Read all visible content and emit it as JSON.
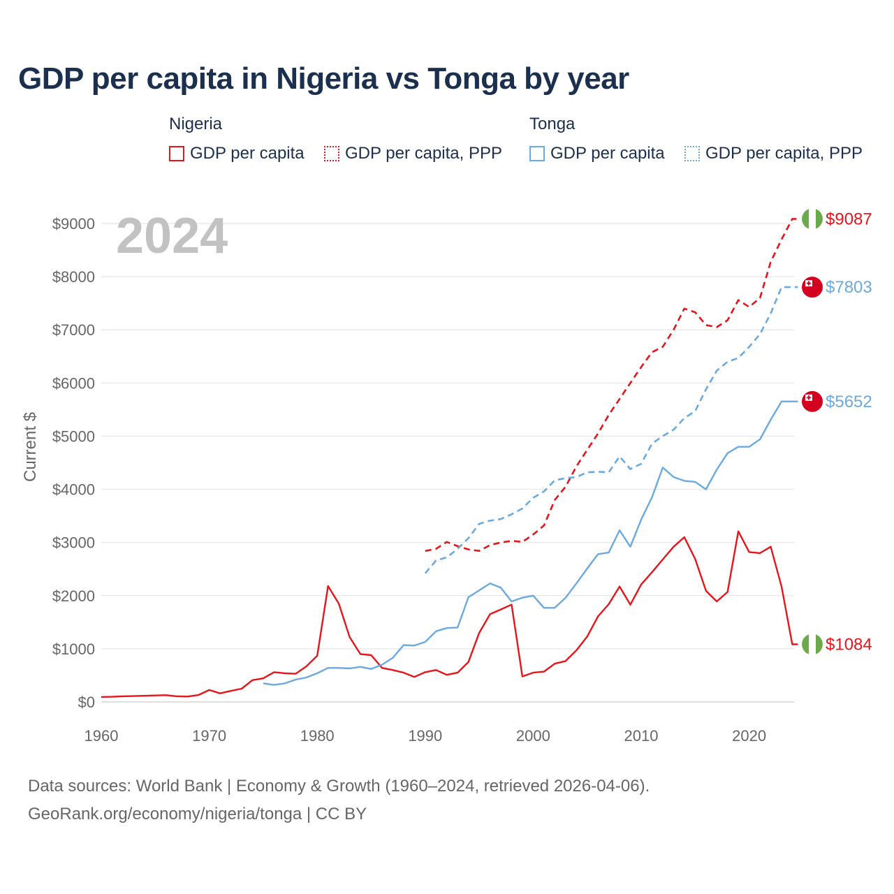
{
  "title": "GDP per capita in Nigeria vs Tonga by year",
  "legend": {
    "groups": [
      {
        "name": "Nigeria",
        "items": [
          "GDP per capita",
          "GDP per capita, PPP"
        ]
      },
      {
        "name": "Tonga",
        "items": [
          "GDP per capita",
          "GDP per capita, PPP"
        ]
      }
    ]
  },
  "year_label": "2024",
  "footer": {
    "line1": "Data sources: World Bank | Economy & Growth (1960–2024, retrieved 2026-04-06).",
    "line2": "GeoRank.org/economy/nigeria/tonga | CC BY"
  },
  "colors": {
    "nigeria": "#e8141b",
    "tonga": "#6aa9e2"
  },
  "chart_data": {
    "type": "line",
    "title": "GDP per capita in Nigeria vs Tonga by year",
    "xlabel": "",
    "ylabel": "Current $",
    "xlim": [
      1960,
      2025
    ],
    "ylim": [
      0,
      9000
    ],
    "x_ticks": [
      1960,
      1970,
      1980,
      1990,
      2000,
      2010,
      2020
    ],
    "y_ticks": [
      0,
      1000,
      2000,
      3000,
      4000,
      5000,
      6000,
      7000,
      8000,
      9000
    ],
    "y_tick_labels": [
      "$0",
      "$1000",
      "$2000",
      "$3000",
      "$4000",
      "$5000",
      "$6000",
      "$7000",
      "$8000",
      "$9000"
    ],
    "grid": true,
    "legend_position": "top",
    "series": [
      {
        "name": "Nigeria GDP per capita",
        "country": "nigeria",
        "style": "solid",
        "end_label": "$1084",
        "x": [
          1960,
          1961,
          1962,
          1963,
          1964,
          1965,
          1966,
          1967,
          1968,
          1969,
          1970,
          1971,
          1972,
          1973,
          1974,
          1975,
          1976,
          1977,
          1978,
          1979,
          1980,
          1981,
          1982,
          1983,
          1984,
          1985,
          1986,
          1987,
          1988,
          1989,
          1990,
          1991,
          1992,
          1993,
          1994,
          1995,
          1996,
          1997,
          1998,
          1999,
          2000,
          2001,
          2002,
          2003,
          2004,
          2005,
          2006,
          2007,
          2008,
          2009,
          2010,
          2011,
          2012,
          2013,
          2014,
          2015,
          2016,
          2017,
          2018,
          2019,
          2020,
          2021,
          2022,
          2023,
          2024
        ],
        "values": [
          93,
          97,
          106,
          110,
          116,
          122,
          127,
          106,
          101,
          130,
          225,
          162,
          208,
          250,
          410,
          444,
          560,
          540,
          530,
          670,
          870,
          2180,
          1850,
          1220,
          900,
          880,
          640,
          600,
          550,
          470,
          560,
          600,
          510,
          550,
          750,
          1300,
          1650,
          1740,
          1830,
          480,
          550,
          570,
          720,
          770,
          970,
          1230,
          1610,
          1840,
          2170,
          1830,
          2210,
          2440,
          2680,
          2920,
          3100,
          2690,
          2090,
          1890,
          2070,
          3210,
          2820,
          2800,
          2920,
          2170,
          1084
        ]
      },
      {
        "name": "Nigeria GDP per capita, PPP",
        "country": "nigeria",
        "style": "dashed",
        "end_label": "$9087",
        "x": [
          1990,
          1991,
          1992,
          1993,
          1994,
          1995,
          1996,
          1997,
          1998,
          1999,
          2000,
          2001,
          2002,
          2003,
          2004,
          2005,
          2006,
          2007,
          2008,
          2009,
          2010,
          2011,
          2012,
          2013,
          2014,
          2015,
          2016,
          2017,
          2018,
          2019,
          2020,
          2021,
          2022,
          2023,
          2024
        ],
        "values": [
          2840,
          2880,
          3010,
          2930,
          2870,
          2840,
          2950,
          3000,
          3030,
          3010,
          3150,
          3320,
          3800,
          4050,
          4430,
          4740,
          5050,
          5400,
          5700,
          6000,
          6300,
          6580,
          6680,
          7000,
          7400,
          7330,
          7090,
          7050,
          7180,
          7560,
          7430,
          7600,
          8280,
          8700,
          9087
        ]
      },
      {
        "name": "Tonga GDP per capita",
        "country": "tonga",
        "style": "solid",
        "end_label": "$5652",
        "x": [
          1975,
          1976,
          1977,
          1978,
          1979,
          1980,
          1981,
          1982,
          1983,
          1984,
          1985,
          1986,
          1987,
          1988,
          1989,
          1990,
          1991,
          1992,
          1993,
          1994,
          1995,
          1996,
          1997,
          1998,
          1999,
          2000,
          2001,
          2002,
          2003,
          2004,
          2005,
          2006,
          2007,
          2008,
          2009,
          2010,
          2011,
          2012,
          2013,
          2014,
          2015,
          2016,
          2017,
          2018,
          2019,
          2020,
          2021,
          2022,
          2023,
          2024
        ],
        "values": [
          350,
          320,
          350,
          420,
          460,
          540,
          640,
          640,
          630,
          660,
          620,
          700,
          830,
          1070,
          1060,
          1130,
          1330,
          1390,
          1400,
          1970,
          2100,
          2230,
          2150,
          1890,
          1960,
          2000,
          1770,
          1770,
          1960,
          2230,
          2510,
          2780,
          2810,
          3230,
          2920,
          3430,
          3850,
          4410,
          4230,
          4160,
          4140,
          4000,
          4370,
          4680,
          4800,
          4800,
          4940,
          5310,
          5652,
          5652
        ]
      },
      {
        "name": "Tonga GDP per capita, PPP",
        "country": "tonga",
        "style": "dashed",
        "end_label": "$7803",
        "x": [
          1990,
          1991,
          1992,
          1993,
          1994,
          1995,
          1996,
          1997,
          1998,
          1999,
          2000,
          2001,
          2002,
          2003,
          2004,
          2005,
          2006,
          2007,
          2008,
          2009,
          2010,
          2011,
          2012,
          2013,
          2014,
          2015,
          2016,
          2017,
          2018,
          2019,
          2020,
          2021,
          2022,
          2023,
          2024
        ],
        "values": [
          2420,
          2660,
          2720,
          2880,
          3080,
          3350,
          3410,
          3440,
          3530,
          3640,
          3840,
          3960,
          4170,
          4210,
          4230,
          4320,
          4330,
          4320,
          4620,
          4380,
          4480,
          4860,
          5000,
          5120,
          5340,
          5470,
          5880,
          6230,
          6400,
          6470,
          6680,
          6920,
          7310,
          7803,
          7803
        ]
      }
    ]
  }
}
